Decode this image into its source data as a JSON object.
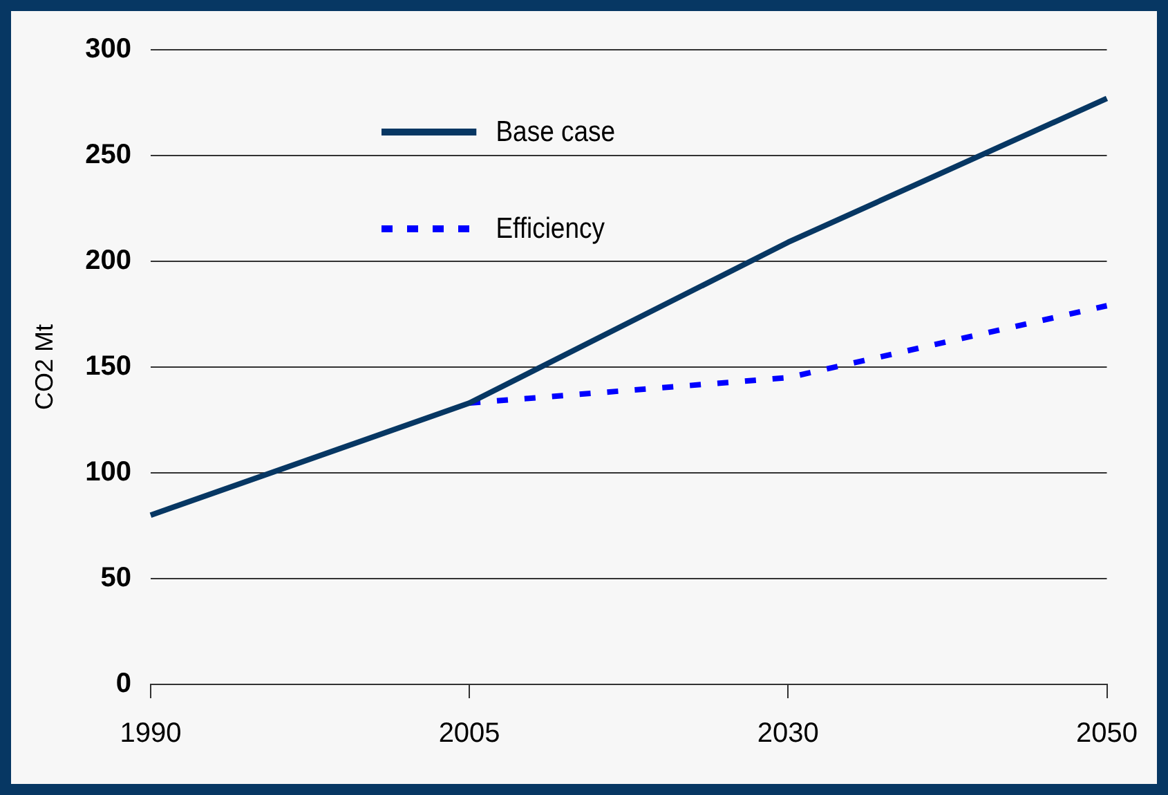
{
  "chart_data": {
    "type": "line",
    "ylabel": "CO2 Mt",
    "categories": [
      "1990",
      "2005",
      "2030",
      "2050"
    ],
    "series": [
      {
        "name": "Base case",
        "color": "#073763",
        "line_style": "solid",
        "values": [
          80,
          133,
          209,
          277
        ]
      },
      {
        "name": "Efficiency",
        "color": "#0000ff",
        "line_style": "dotted",
        "values": [
          null,
          133,
          145,
          179
        ]
      }
    ],
    "ylim": [
      0,
      300
    ],
    "yticks": [
      0,
      50,
      100,
      150,
      200,
      250,
      300
    ],
    "grid": "y",
    "legend": "top left",
    "marker": "none"
  }
}
